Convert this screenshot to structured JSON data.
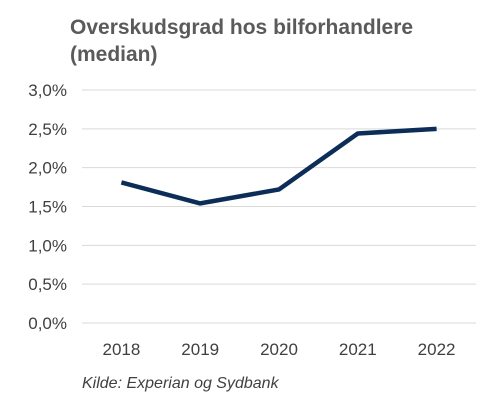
{
  "chart_data": {
    "type": "line",
    "title": "Overskudsgrad hos bilforhandlere (median)",
    "xlabel": "",
    "ylabel": "",
    "categories": [
      "2018",
      "2019",
      "2020",
      "2021",
      "2022"
    ],
    "series": [
      {
        "values": [
          1.81,
          1.54,
          1.72,
          2.44,
          2.5
        ]
      }
    ],
    "ylim": [
      0,
      3
    ],
    "yticks": [
      0,
      0.5,
      1,
      1.5,
      2,
      2.5,
      3
    ],
    "ytick_labels": [
      "0,0%",
      "0,5%",
      "1,0%",
      "1,5%",
      "2,0%",
      "2,5%",
      "3,0%"
    ],
    "grid": "horizontal",
    "legend": "none",
    "line_color": "#0c2d57",
    "grid_color": "#d9d9d9",
    "source": "Kilde: Experian og Sydbank"
  }
}
